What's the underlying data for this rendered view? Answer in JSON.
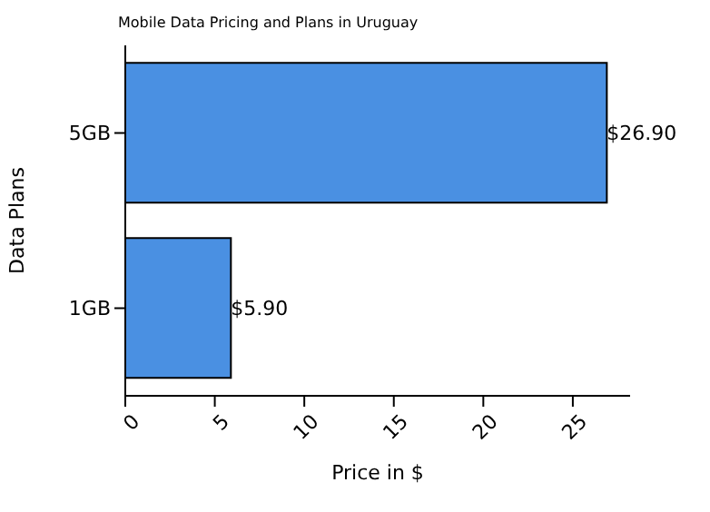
{
  "chart_data": {
    "type": "bar",
    "orientation": "horizontal",
    "title": "Mobile Data Pricing and Plans in Uruguay",
    "xlabel": "Price in $",
    "ylabel": "Data Plans",
    "categories": [
      "5GB",
      "1GB"
    ],
    "values": [
      26.9,
      5.9
    ],
    "value_labels": [
      "$26.90",
      "$5.90"
    ],
    "color": "#4a90e2",
    "xlim": [
      0,
      28.2
    ],
    "xticks": [
      0,
      5,
      10,
      15,
      20,
      25
    ]
  }
}
